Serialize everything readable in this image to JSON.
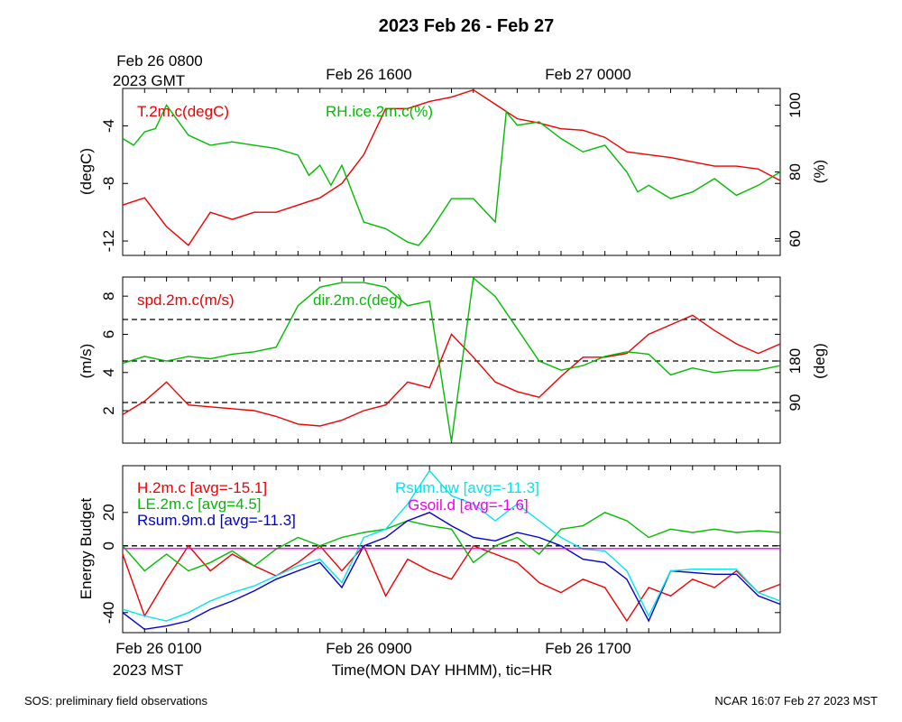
{
  "title": "2023 Feb 26 - Feb 27",
  "gmt_axis": {
    "first_label": "Feb 26 0800",
    "first_sub": "2023 GMT",
    "labels": [
      "Feb 26 1600",
      "Feb 27 0000"
    ]
  },
  "mst_axis": {
    "first_label": "Feb 26 0100",
    "first_sub": "2023 MST",
    "labels": [
      "Feb 26 0900",
      "Feb 26 1700"
    ],
    "title": "Time(MON DAY HHMM), tic=HR"
  },
  "footer": {
    "left": "SOS: preliminary field observations",
    "right": "NCAR 16:07 Feb 27 2023 MST"
  },
  "colors": {
    "red": "#ee0000",
    "green": "#00bb00",
    "blue": "#0000cc",
    "cyan": "#00e5ee",
    "magenta": "#ee00ee",
    "black": "#000000"
  },
  "chart_data": [
    {
      "type": "line",
      "xlim": [
        0,
        30
      ],
      "y_left": {
        "label": "(degC)",
        "ylim": [
          -13,
          -1.4
        ],
        "ticks": [
          -12,
          -8,
          -4
        ]
      },
      "y_right": {
        "label": "(%)",
        "ylim": [
          55,
          105
        ],
        "ticks": [
          60,
          80,
          100
        ]
      },
      "series": [
        {
          "name": "T.2m.c(degC)",
          "color": "red",
          "axis": "left",
          "x": [
            0,
            1,
            2,
            3,
            4,
            5,
            6,
            7,
            8,
            9,
            10,
            10.5,
            11,
            12,
            13,
            14,
            15,
            16,
            17,
            18,
            19,
            20,
            21,
            22,
            23,
            24,
            25,
            26,
            27,
            28,
            29,
            30
          ],
          "y": [
            -9.5,
            -9,
            -11,
            -12.3,
            -10,
            -10.5,
            -10,
            -10,
            -9.5,
            -9,
            -8,
            -7,
            -6,
            -2.8,
            -2.8,
            -2.3,
            -2,
            -1.5,
            -2.5,
            -3.5,
            -3.8,
            -4.2,
            -4.3,
            -4.8,
            -5.8,
            -6,
            -6.2,
            -6.5,
            -6.8,
            -6.8,
            -7,
            -7.8
          ]
        },
        {
          "name": "RH.ice.2m.c(%)",
          "color": "green",
          "axis": "right",
          "x": [
            0,
            0.5,
            1,
            1.5,
            2,
            3,
            4,
            5,
            6,
            7,
            8,
            8.5,
            9,
            9.5,
            10,
            11,
            12,
            13,
            13.5,
            14,
            15,
            16,
            17,
            17.5,
            18,
            19,
            20,
            21,
            22,
            23,
            23.5,
            24,
            25,
            26,
            27,
            28,
            29,
            30
          ],
          "y": [
            90,
            88,
            92,
            93,
            100,
            91,
            88,
            89,
            88,
            87,
            85,
            79,
            82,
            76,
            82,
            65,
            63,
            59,
            58,
            62,
            72,
            72,
            65,
            98,
            94,
            95,
            90,
            86,
            88,
            80,
            74,
            76,
            72,
            74,
            78,
            73,
            76,
            80
          ]
        }
      ]
    },
    {
      "type": "line",
      "xlim": [
        0,
        30
      ],
      "y_left": {
        "label": "(m/s)",
        "ylim": [
          0.3,
          9
        ],
        "ticks": [
          2,
          4,
          6,
          8
        ]
      },
      "y_right": {
        "label": "(deg)",
        "ylim": [
          2,
          362
        ],
        "ticks": [
          90,
          180
        ]
      },
      "ref_lines_deg": [
        90,
        180,
        270
      ],
      "series": [
        {
          "name": "spd.2m.c(m/s)",
          "color": "red",
          "axis": "left",
          "x": [
            0,
            1,
            2,
            3,
            4,
            5,
            6,
            7,
            8,
            9,
            10,
            11,
            12,
            13,
            14,
            15,
            16,
            17,
            18,
            19,
            20,
            21,
            22,
            23,
            24,
            25,
            26,
            27,
            28,
            29,
            30
          ],
          "y": [
            1.8,
            2.5,
            3.5,
            2.3,
            2.2,
            2.1,
            2.0,
            1.7,
            1.3,
            1.2,
            1.5,
            2.0,
            2.3,
            3.5,
            3.2,
            6.0,
            4.8,
            3.5,
            3.0,
            2.7,
            3.8,
            4.8,
            4.8,
            5.0,
            6.0,
            6.5,
            7.0,
            6.2,
            5.5,
            5.0,
            5.5
          ]
        },
        {
          "name": "dir.2m.c(deg)",
          "color": "green",
          "axis": "right",
          "x": [
            0,
            1,
            2,
            3,
            4,
            5,
            6,
            7,
            8,
            9,
            10,
            11,
            12,
            13,
            14,
            15,
            16,
            17,
            18,
            19,
            20,
            21,
            22,
            23,
            24,
            25,
            26,
            27,
            28,
            29,
            30
          ],
          "y": [
            175,
            190,
            180,
            190,
            185,
            195,
            200,
            210,
            300,
            340,
            350,
            350,
            340,
            300,
            310,
            5,
            360,
            320,
            250,
            180,
            160,
            170,
            190,
            200,
            195,
            150,
            165,
            155,
            160,
            160,
            170
          ]
        }
      ]
    },
    {
      "type": "line",
      "xlim": [
        0,
        30
      ],
      "y_left": {
        "label": "Energy Budget",
        "ylim": [
          -52,
          48
        ],
        "ticks": [
          -40,
          0,
          20
        ]
      },
      "series": [
        {
          "name": "H.2m.c [avg=-15.1]",
          "color": "red",
          "x": [
            0,
            1,
            2,
            3,
            4,
            5,
            6,
            7,
            8,
            9,
            10,
            11,
            12,
            13,
            14,
            15,
            16,
            17,
            18,
            19,
            20,
            21,
            22,
            23,
            24,
            25,
            26,
            27,
            28,
            29,
            30
          ],
          "y": [
            -5,
            -42,
            -20,
            0,
            -15,
            -5,
            -12,
            -18,
            -10,
            0,
            -15,
            0,
            -30,
            -8,
            -15,
            -20,
            0,
            -5,
            -10,
            -22,
            -28,
            -20,
            -25,
            -45,
            -25,
            -30,
            -20,
            -25,
            -15,
            -28,
            -23
          ]
        },
        {
          "name": "LE.2m.c [avg=4.5]",
          "color": "green",
          "x": [
            0,
            1,
            2,
            3,
            4,
            5,
            6,
            7,
            8,
            9,
            10,
            11,
            12,
            13,
            14,
            15,
            16,
            17,
            18,
            19,
            20,
            21,
            22,
            23,
            24,
            25,
            26,
            27,
            28,
            29,
            30
          ],
          "y": [
            0,
            -15,
            -5,
            -15,
            -10,
            -3,
            -12,
            -2,
            5,
            0,
            5,
            8,
            10,
            15,
            12,
            10,
            -10,
            0,
            5,
            -5,
            10,
            12,
            20,
            15,
            5,
            10,
            8,
            10,
            8,
            9,
            8
          ]
        },
        {
          "name": "Rsum.9m.d [avg=-11.3]",
          "color": "blue",
          "x": [
            0,
            1,
            2,
            3,
            4,
            5,
            6,
            7,
            8,
            9,
            10,
            11,
            12,
            13,
            14,
            15,
            16,
            17,
            18,
            19,
            20,
            21,
            22,
            23,
            24,
            25,
            26,
            27,
            28,
            29,
            30
          ],
          "y": [
            -40,
            -50,
            -48,
            -45,
            -38,
            -33,
            -27,
            -20,
            -15,
            -10,
            -25,
            0,
            5,
            15,
            20,
            12,
            5,
            3,
            8,
            5,
            0,
            -8,
            -10,
            -20,
            -45,
            -15,
            -16,
            -17,
            -17,
            -30,
            -35
          ]
        },
        {
          "name": "Rsum.uw [avg=-11.3]",
          "color": "cyan",
          "x": [
            0,
            1,
            2,
            3,
            4,
            5,
            6,
            7,
            8,
            9,
            10,
            11,
            12,
            13,
            14,
            15,
            16,
            17,
            18,
            19,
            20,
            21,
            22,
            23,
            24,
            25,
            26,
            27,
            28,
            29,
            30
          ],
          "y": [
            -38,
            -42,
            -45,
            -40,
            -33,
            -28,
            -24,
            -18,
            -12,
            -8,
            -22,
            5,
            10,
            25,
            45,
            30,
            25,
            15,
            25,
            15,
            5,
            -2,
            -3,
            -15,
            -42,
            -15,
            -14,
            -14,
            -14,
            -28,
            -33
          ]
        },
        {
          "name": "Gsoil.d [avg=-1.6]",
          "color": "magenta",
          "x": [
            0,
            30
          ],
          "y": [
            -1.6,
            -1.6
          ]
        }
      ]
    }
  ]
}
